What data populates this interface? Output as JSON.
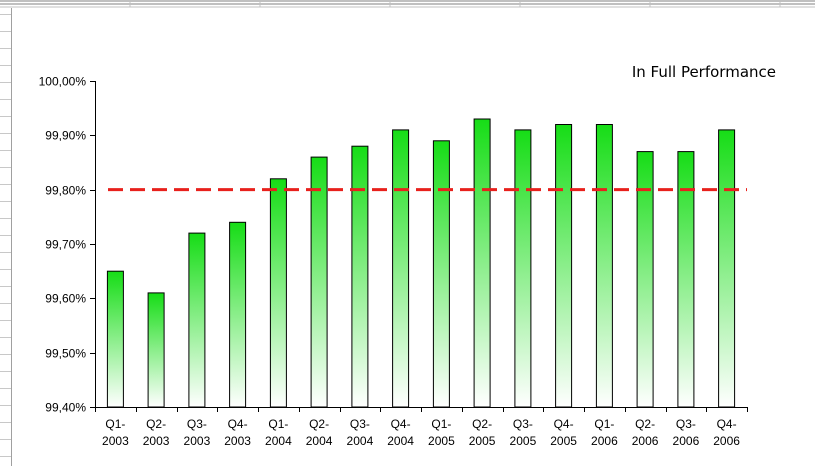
{
  "chart_data": {
    "type": "bar",
    "title": "In Full Performance",
    "xlabel": "",
    "ylabel": "",
    "categories": [
      [
        "Q1-",
        "2003"
      ],
      [
        "Q2-",
        "2003"
      ],
      [
        "Q3-",
        "2003"
      ],
      [
        "Q4-",
        "2003"
      ],
      [
        "Q1-",
        "2004"
      ],
      [
        "Q2-",
        "2004"
      ],
      [
        "Q3-",
        "2004"
      ],
      [
        "Q4-",
        "2004"
      ],
      [
        "Q1-",
        "2005"
      ],
      [
        "Q2-",
        "2005"
      ],
      [
        "Q3-",
        "2005"
      ],
      [
        "Q4-",
        "2005"
      ],
      [
        "Q1-",
        "2006"
      ],
      [
        "Q2-",
        "2006"
      ],
      [
        "Q3-",
        "2006"
      ],
      [
        "Q4-",
        "2006"
      ]
    ],
    "values": [
      99.65,
      99.61,
      99.72,
      99.74,
      99.82,
      99.86,
      99.88,
      99.91,
      99.89,
      99.93,
      99.91,
      99.92,
      99.92,
      99.87,
      99.87,
      99.91
    ],
    "ylim": [
      99.4,
      100.0
    ],
    "yticks": [
      99.4,
      99.5,
      99.6,
      99.7,
      99.8,
      99.9,
      100.0
    ],
    "ytick_labels": [
      "99,40%",
      "99,50%",
      "99,60%",
      "99,70%",
      "99,80%",
      "99,90%",
      "100,00%"
    ],
    "target_line": 99.8,
    "colors": {
      "bar_top": "#16dd16",
      "bar_bottom": "#ffffff",
      "bar_stroke": "#000000",
      "target_line": "#e8201c",
      "axis": "#000000"
    },
    "legend": "none",
    "grid": false
  }
}
